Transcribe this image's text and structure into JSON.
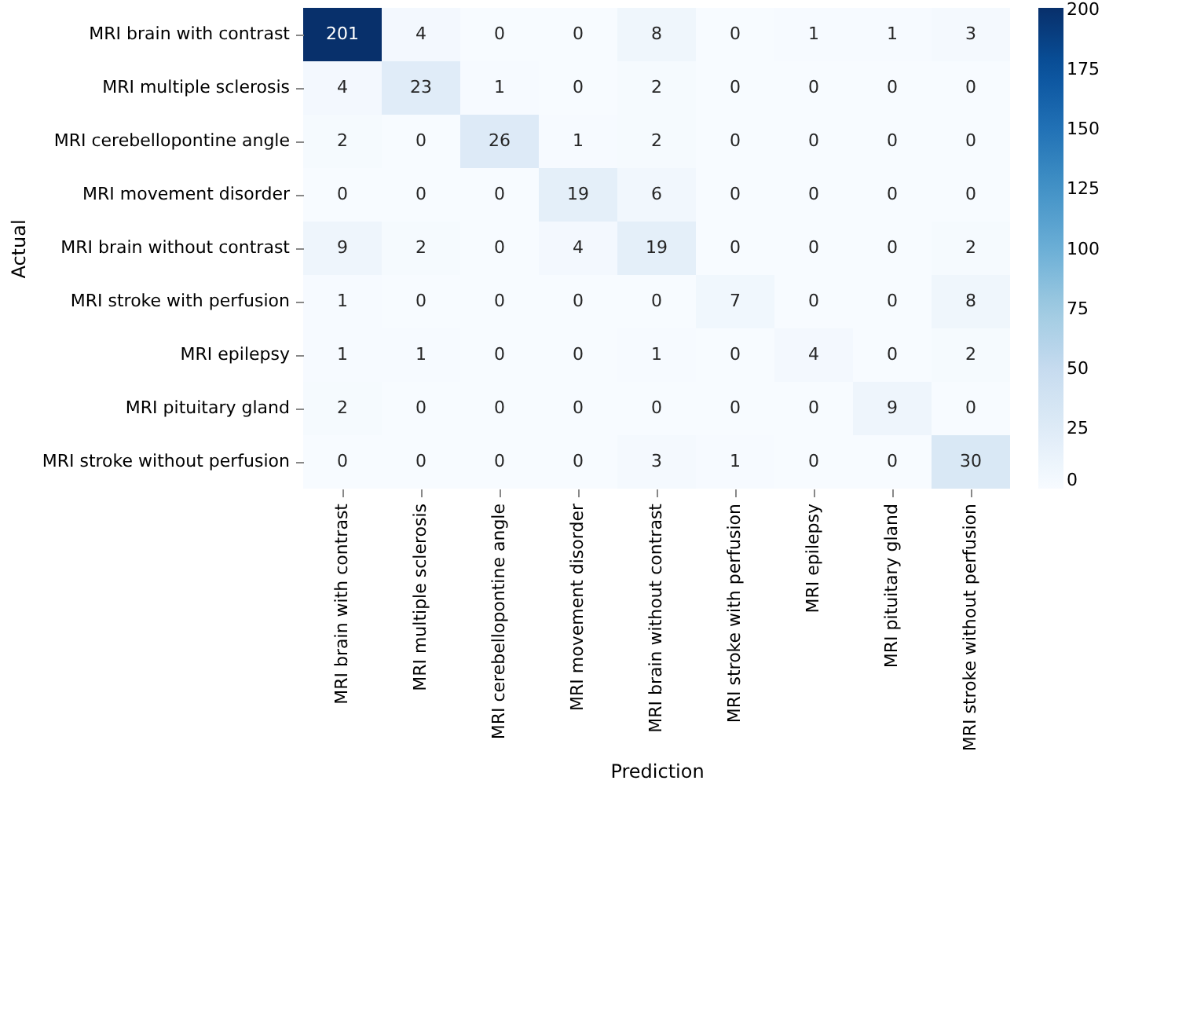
{
  "chart_data": {
    "type": "heatmap",
    "xlabel": "Prediction",
    "ylabel": "Actual",
    "categories": [
      "MRI brain with contrast",
      "MRI multiple sclerosis",
      "MRI cerebellopontine angle",
      "MRI movement disorder",
      "MRI brain without contrast",
      "MRI stroke with perfusion",
      "MRI epilepsy",
      "MRI pituitary gland",
      "MRI stroke without perfusion"
    ],
    "y_categories": [
      "MRI brain with contrast",
      "MRI multiple sclerosis",
      "MRI cerebellopontine angle",
      "MRI movement disorder",
      "MRI brain without contrast",
      "MRI stroke with perfusion",
      "MRI epilepsy",
      "MRI pituitary gland",
      "MRI stroke without perfusion"
    ],
    "cells": [
      [
        201,
        4,
        0,
        0,
        8,
        0,
        1,
        1,
        3
      ],
      [
        4,
        23,
        1,
        0,
        2,
        0,
        0,
        0,
        0
      ],
      [
        2,
        0,
        26,
        1,
        2,
        0,
        0,
        0,
        0
      ],
      [
        0,
        0,
        0,
        19,
        6,
        0,
        0,
        0,
        0
      ],
      [
        9,
        2,
        0,
        4,
        19,
        0,
        0,
        0,
        2
      ],
      [
        1,
        0,
        0,
        0,
        0,
        7,
        0,
        0,
        8
      ],
      [
        1,
        1,
        0,
        0,
        1,
        0,
        4,
        0,
        2
      ],
      [
        2,
        0,
        0,
        0,
        0,
        0,
        0,
        9,
        0
      ],
      [
        0,
        0,
        0,
        0,
        3,
        1,
        0,
        0,
        30
      ]
    ],
    "clim": [
      0,
      201
    ],
    "cticks": [
      0,
      25,
      50,
      75,
      100,
      125,
      150,
      175,
      200
    ],
    "data_labels": true,
    "grid": false
  }
}
